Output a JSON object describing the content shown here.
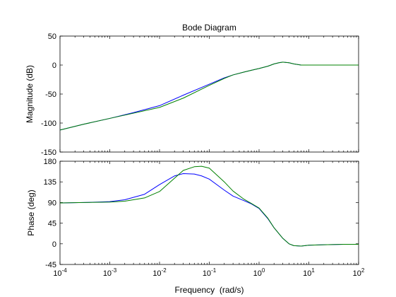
{
  "chart_data": [
    {
      "type": "line",
      "title": "Bode Diagram",
      "xlabel": "",
      "ylabel": "Magnitude (dB)",
      "xscale": "log",
      "xlim": [
        0.0001,
        100
      ],
      "ylim": [
        -150,
        50
      ],
      "yticks": [
        -150,
        -100,
        -50,
        0,
        50
      ],
      "ytick_labels": [
        "-150",
        "-100",
        "-50",
        "0",
        "50"
      ],
      "grid": false,
      "legend": "none",
      "series": [
        {
          "color": "#0000ff",
          "x": [
            0.0001,
            0.0003,
            0.001,
            0.003,
            0.01,
            0.03,
            0.1,
            0.2,
            0.3,
            0.5,
            0.7,
            1,
            1.5,
            2,
            2.5,
            3,
            4,
            5,
            7,
            10,
            20,
            50,
            100
          ],
          "y": [
            -112,
            -102,
            -92,
            -82,
            -70,
            -52,
            -33,
            -22,
            -17,
            -12,
            -9,
            -6,
            -2,
            2,
            4,
            5,
            4,
            2,
            0,
            0,
            0,
            0,
            0
          ]
        },
        {
          "color": "#008000",
          "x": [
            0.0001,
            0.0003,
            0.001,
            0.003,
            0.01,
            0.03,
            0.1,
            0.2,
            0.3,
            0.5,
            0.7,
            1,
            1.5,
            2,
            2.5,
            3,
            4,
            5,
            7,
            10,
            20,
            50,
            100
          ],
          "y": [
            -112,
            -102,
            -92,
            -83,
            -73,
            -57,
            -35,
            -23,
            -17,
            -12,
            -9,
            -6,
            -2,
            2,
            4,
            5,
            4,
            2,
            0,
            0,
            0,
            0,
            0
          ]
        }
      ]
    },
    {
      "type": "line",
      "title": "",
      "xlabel": "Frequency  (rad/s)",
      "ylabel": "Phase (deg)",
      "xscale": "log",
      "xlim": [
        0.0001,
        100
      ],
      "ylim": [
        -45,
        180
      ],
      "xticks": [
        0.0001,
        0.001,
        0.01,
        0.1,
        1,
        10,
        100
      ],
      "xtick_labels": [
        {
          "base": "10",
          "exp": "-4"
        },
        {
          "base": "10",
          "exp": "-3"
        },
        {
          "base": "10",
          "exp": "-2"
        },
        {
          "base": "10",
          "exp": "-1"
        },
        {
          "base": "10",
          "exp": "0"
        },
        {
          "base": "10",
          "exp": "1"
        },
        {
          "base": "10",
          "exp": "2"
        }
      ],
      "yticks": [
        -45,
        0,
        45,
        90,
        135,
        180
      ],
      "ytick_labels": [
        "-45",
        "0",
        "45",
        "90",
        "135",
        "180"
      ],
      "grid": false,
      "legend": "none",
      "series": [
        {
          "color": "#0000ff",
          "x": [
            0.0001,
            0.0003,
            0.001,
            0.002,
            0.005,
            0.01,
            0.02,
            0.03,
            0.05,
            0.07,
            0.1,
            0.2,
            0.3,
            0.5,
            0.7,
            1,
            1.5,
            2,
            3,
            4,
            5,
            7,
            10,
            20,
            50,
            100
          ],
          "y": [
            89,
            90,
            92,
            96,
            108,
            129,
            148,
            153,
            152,
            148,
            141,
            117,
            104,
            94,
            87,
            77,
            55,
            35,
            12,
            0,
            -4,
            -5,
            -3,
            -2,
            -1,
            -1
          ]
        },
        {
          "color": "#008000",
          "x": [
            0.0001,
            0.0003,
            0.001,
            0.002,
            0.005,
            0.01,
            0.02,
            0.03,
            0.05,
            0.07,
            0.1,
            0.2,
            0.3,
            0.5,
            0.7,
            1,
            1.5,
            2,
            3,
            4,
            5,
            7,
            10,
            20,
            50,
            100
          ],
          "y": [
            89,
            90,
            91,
            93,
            100,
            114,
            143,
            160,
            168,
            169,
            165,
            135,
            115,
            97,
            88,
            78,
            56,
            35,
            12,
            0,
            -4,
            -5,
            -3,
            -2,
            -1,
            -1
          ]
        }
      ]
    }
  ]
}
